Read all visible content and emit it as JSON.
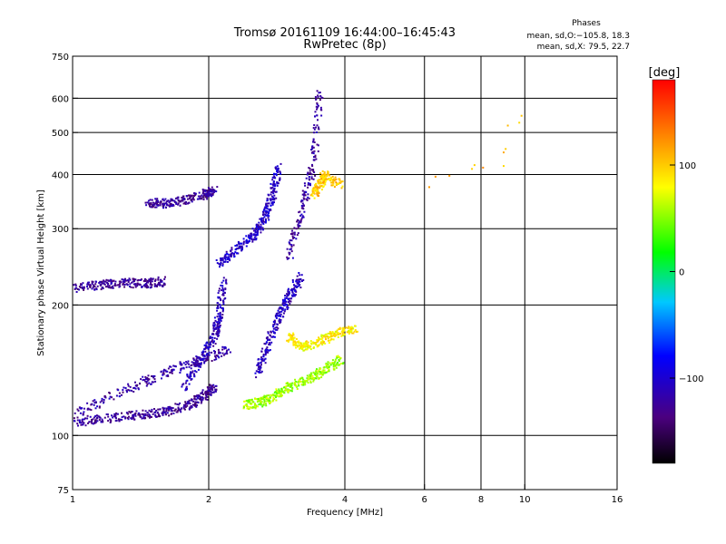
{
  "chart_data": {
    "type": "scatter",
    "title": "Tromsø 20161109 16:44:00–16:45:43",
    "subtitle": "RwPretec (8p)",
    "xlabel": "Frequency [MHz]",
    "ylabel": "Stationary phase Virtual Height [km]",
    "x_scale": "log",
    "y_scale": "log",
    "xlim": [
      1,
      16
    ],
    "ylim": [
      75,
      750
    ],
    "x_ticks": [
      1,
      2,
      4,
      6,
      8,
      10,
      16
    ],
    "x_tick_labels": [
      "1",
      "2",
      "4",
      "6",
      "8",
      "10",
      "16"
    ],
    "y_ticks": [
      75,
      100,
      200,
      300,
      400,
      500,
      600,
      750
    ],
    "y_tick_labels": [
      "75",
      "100",
      "200",
      "300",
      "400",
      "500",
      "600",
      "750"
    ],
    "grid": true,
    "phase_info": {
      "title": "Phases",
      "line1": "mean, sd,O:−105.8, 18.3",
      "line2": "mean, sd,X:  79.5, 22.7"
    },
    "colorbar": {
      "label": "[deg]",
      "ticks": [
        100,
        0,
        -100
      ],
      "tick_labels": [
        "100",
        "0",
        "−100"
      ],
      "range": [
        -180,
        180
      ],
      "colormap": "rainbow (black → purple → blue → cyan → green → yellow → red)"
    },
    "traces": [
      {
        "kind": "O-low",
        "phase": -125,
        "x": [
          1.0,
          1.2,
          1.4,
          1.6,
          1.8,
          1.95,
          2.05
        ],
        "y": [
          108,
          110,
          112,
          114,
          118,
          124,
          130
        ]
      },
      {
        "kind": "O-low-scatter",
        "phase": -120,
        "x": [
          1.0,
          1.3,
          1.6,
          1.9,
          2.2
        ],
        "y": [
          112,
          128,
          140,
          150,
          158
        ]
      },
      {
        "kind": "O-mid-cloud",
        "phase": -110,
        "x": [
          1.75,
          1.9,
          2.05,
          2.1,
          2.15
        ],
        "y": [
          130,
          150,
          170,
          190,
          230
        ]
      },
      {
        "kind": "O-E-layer",
        "phase": -125,
        "x": [
          1.0,
          1.15,
          1.3,
          1.45,
          1.6
        ],
        "y": [
          220,
          224,
          226,
          225,
          228
        ]
      },
      {
        "kind": "O-F2",
        "phase": -105,
        "x": [
          2.1,
          2.3,
          2.5,
          2.65,
          2.75,
          2.85
        ],
        "y": [
          250,
          270,
          290,
          320,
          360,
          420
        ]
      },
      {
        "kind": "O-F2b",
        "phase": -110,
        "x": [
          2.55,
          2.7,
          2.85,
          3.0,
          3.2
        ],
        "y": [
          140,
          165,
          190,
          210,
          235
        ]
      },
      {
        "kind": "O-cusp",
        "phase": -120,
        "x": [
          3.0,
          3.2,
          3.4,
          3.5
        ],
        "y": [
          260,
          330,
          430,
          620
        ]
      },
      {
        "kind": "O-upper",
        "phase": -125,
        "x": [
          1.45,
          1.6,
          1.75,
          1.95,
          2.05
        ],
        "y": [
          345,
          345,
          350,
          362,
          370
        ]
      },
      {
        "kind": "X-low",
        "phase": 55,
        "x": [
          2.4,
          2.6,
          2.8,
          3.0,
          3.3,
          3.6,
          3.9
        ],
        "y": [
          118,
          120,
          124,
          130,
          136,
          142,
          150
        ]
      },
      {
        "kind": "X-mid",
        "phase": 85,
        "x": [
          3.0,
          3.2,
          3.5,
          3.8,
          4.2
        ],
        "y": [
          170,
          160,
          165,
          172,
          178
        ]
      },
      {
        "kind": "X-high",
        "phase": 100,
        "x": [
          3.4,
          3.5,
          3.6,
          3.9
        ],
        "y": [
          360,
          380,
          400,
          380
        ]
      },
      {
        "kind": "X-sparse",
        "phase": 110,
        "x": [
          6.2,
          7.2,
          9.0,
          9.0,
          11.5
        ],
        "y": [
          380,
          420,
          430,
          520,
          610
        ]
      }
    ]
  }
}
